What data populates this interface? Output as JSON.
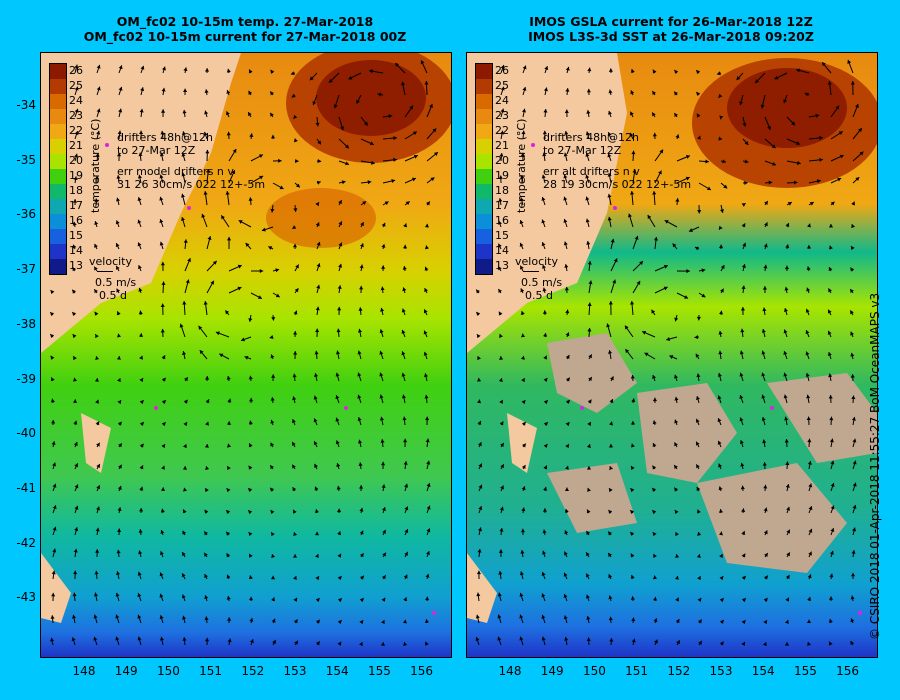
{
  "titles": {
    "left": [
      "OM_fc02 10-15m temp. 27-Mar-2018",
      "OM_fc02 10-15m current for 27-Mar-2018 00Z"
    ],
    "right": [
      "IMOS GSLA current for 26-Mar-2018 12Z",
      "IMOS L3S-3d SST at 26-Mar-2018 09:20Z"
    ]
  },
  "axes": {
    "lat_ticks": [
      "-34",
      "-35",
      "-36",
      "-37",
      "-38",
      "-39",
      "-40",
      "-41",
      "-42",
      "-43"
    ],
    "lon_ticks": [
      "148",
      "149",
      "150",
      "151",
      "152",
      "153",
      "154",
      "155",
      "156"
    ]
  },
  "colorbar": {
    "title": "temperature (°C)",
    "labels": [
      "26",
      "25",
      "24",
      "23",
      "22",
      "21",
      "20",
      "19",
      "18",
      "17",
      "16",
      "15",
      "14",
      "13"
    ],
    "colors": [
      "#8b1a00",
      "#b33a00",
      "#d96a00",
      "#e88a10",
      "#f0a814",
      "#d8d000",
      "#a8e400",
      "#40d010",
      "#10b86a",
      "#10a8b0",
      "#0a8fd8",
      "#1760e0",
      "#1e34c8",
      "#101a88"
    ]
  },
  "annotations": {
    "left": {
      "drifters": [
        "drifters 48h@12h",
        "to 27-Mar 12Z"
      ],
      "err": [
        "err model drifters n v",
        "31 26 30cm/s 022 12+-5m"
      ],
      "velocity": [
        "velocity",
        "0.5 m/s",
        "0.5 d"
      ]
    },
    "right": {
      "drifters": [
        "drifters 48h@12h",
        "to 27-Mar 12Z"
      ],
      "err": [
        "err alt drifters n v",
        "28 19 30cm/s 022 12+-5m"
      ],
      "velocity": [
        "velocity",
        "0.5 m/s",
        "0.5 d"
      ]
    }
  },
  "credit": "© CSIRO 2018   01-Apr-2018 11:55:27 BoM OceanMAPS v3",
  "colors": {
    "background": "#00c8ff",
    "land": "#f5c9a0",
    "cloud": "#c0a890",
    "drifter": "#e020e0"
  }
}
